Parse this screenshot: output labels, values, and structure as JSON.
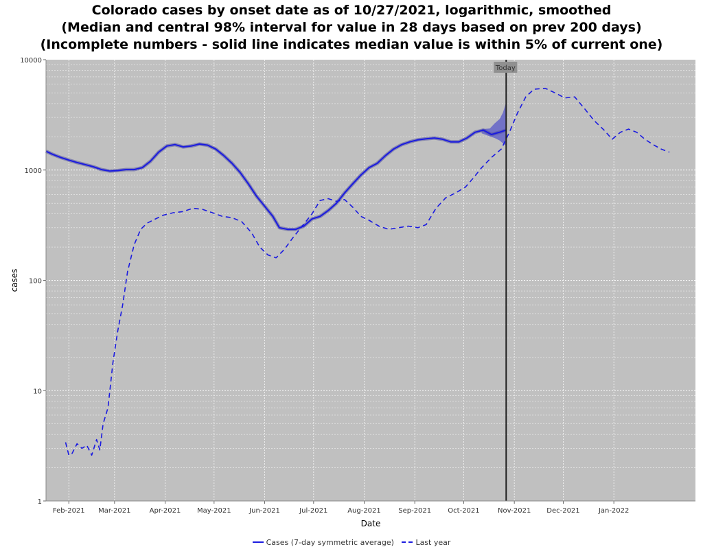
{
  "title_lines": [
    "Colorado cases by onset date as of 10/27/2021, logarithmic, smoothed",
    "(Median and central 98% interval for value in 28 days based on prev 200 days)",
    "(Incomplete numbers - solid line indicates median value is within 5% of current one)"
  ],
  "colors": {
    "plot_background": "#c0c0c0",
    "series": "#1a1ae0",
    "band": "#6464c8",
    "today_line": "#202020"
  },
  "chart_data": {
    "type": "line",
    "title": "Colorado cases by onset date as of 10/27/2021, logarithmic, smoothed",
    "xlabel": "Date",
    "ylabel": "cases",
    "y_scale": "log",
    "ylim": [
      1,
      10000
    ],
    "xlim": [
      "2021-01-18",
      "2022-02-20"
    ],
    "grid": true,
    "legend_position": "bottom",
    "y_ticks": [
      "1",
      "10",
      "100",
      "1000",
      "10000"
    ],
    "x_ticks": [
      {
        "date": "2021-02-01",
        "label": "Feb-2021"
      },
      {
        "date": "2021-03-01",
        "label": "Mar-2021"
      },
      {
        "date": "2021-04-01",
        "label": "Apr-2021"
      },
      {
        "date": "2021-05-01",
        "label": "May-2021"
      },
      {
        "date": "2021-06-01",
        "label": "Jun-2021"
      },
      {
        "date": "2021-07-01",
        "label": "Jul-2021"
      },
      {
        "date": "2021-08-01",
        "label": "Aug-2021"
      },
      {
        "date": "2021-09-01",
        "label": "Sep-2021"
      },
      {
        "date": "2021-10-01",
        "label": "Oct-2021"
      },
      {
        "date": "2021-11-01",
        "label": "Nov-2021"
      },
      {
        "date": "2021-12-01",
        "label": "Dec-2021"
      },
      {
        "date": "2022-01-01",
        "label": "Jan-2022"
      }
    ],
    "annotation": {
      "date": "2021-10-27",
      "label": "Today"
    },
    "series": [
      {
        "name": "Cases (7-day symmetric average)",
        "style": "solid",
        "points": [
          [
            "2021-01-18",
            1480
          ],
          [
            "2021-01-22",
            1390
          ],
          [
            "2021-01-27",
            1300
          ],
          [
            "2021-02-01",
            1230
          ],
          [
            "2021-02-06",
            1170
          ],
          [
            "2021-02-11",
            1120
          ],
          [
            "2021-02-16",
            1070
          ],
          [
            "2021-02-21",
            1010
          ],
          [
            "2021-02-26",
            980
          ],
          [
            "2021-03-03",
            990
          ],
          [
            "2021-03-08",
            1010
          ],
          [
            "2021-03-13",
            1010
          ],
          [
            "2021-03-18",
            1050
          ],
          [
            "2021-03-23",
            1200
          ],
          [
            "2021-03-28",
            1450
          ],
          [
            "2021-04-02",
            1650
          ],
          [
            "2021-04-07",
            1700
          ],
          [
            "2021-04-12",
            1620
          ],
          [
            "2021-04-17",
            1650
          ],
          [
            "2021-04-22",
            1720
          ],
          [
            "2021-04-27",
            1680
          ],
          [
            "2021-05-02",
            1550
          ],
          [
            "2021-05-07",
            1350
          ],
          [
            "2021-05-12",
            1150
          ],
          [
            "2021-05-17",
            950
          ],
          [
            "2021-05-22",
            750
          ],
          [
            "2021-05-27",
            580
          ],
          [
            "2021-06-01",
            470
          ],
          [
            "2021-06-06",
            380
          ],
          [
            "2021-06-10",
            300
          ],
          [
            "2021-06-15",
            290
          ],
          [
            "2021-06-20",
            290
          ],
          [
            "2021-06-25",
            310
          ],
          [
            "2021-06-30",
            360
          ],
          [
            "2021-07-05",
            380
          ],
          [
            "2021-07-10",
            430
          ],
          [
            "2021-07-15",
            500
          ],
          [
            "2021-07-20",
            620
          ],
          [
            "2021-07-25",
            750
          ],
          [
            "2021-07-30",
            900
          ],
          [
            "2021-08-04",
            1050
          ],
          [
            "2021-08-09",
            1150
          ],
          [
            "2021-08-14",
            1350
          ],
          [
            "2021-08-19",
            1550
          ],
          [
            "2021-08-24",
            1700
          ],
          [
            "2021-08-29",
            1800
          ],
          [
            "2021-09-03",
            1880
          ],
          [
            "2021-09-08",
            1920
          ],
          [
            "2021-09-13",
            1950
          ],
          [
            "2021-09-18",
            1900
          ],
          [
            "2021-09-23",
            1800
          ],
          [
            "2021-09-28",
            1800
          ],
          [
            "2021-10-03",
            1950
          ],
          [
            "2021-10-08",
            2200
          ],
          [
            "2021-10-13",
            2300
          ],
          [
            "2021-10-18",
            2100
          ],
          [
            "2021-10-23",
            2200
          ],
          [
            "2021-10-27",
            2300
          ]
        ],
        "band": [
          [
            "2021-10-12",
            2150,
            2350
          ],
          [
            "2021-10-17",
            2020,
            2380
          ],
          [
            "2021-10-20",
            1950,
            2650
          ],
          [
            "2021-10-23",
            1850,
            2900
          ],
          [
            "2021-10-25",
            1750,
            3300
          ],
          [
            "2021-10-27",
            1650,
            4100
          ]
        ]
      },
      {
        "name": "Last year",
        "style": "dashed",
        "points": [
          [
            "2021-01-30",
            3.4
          ],
          [
            "2021-02-01",
            2.6
          ],
          [
            "2021-02-03",
            2.7
          ],
          [
            "2021-02-06",
            3.3
          ],
          [
            "2021-02-09",
            3.0
          ],
          [
            "2021-02-12",
            3.2
          ],
          [
            "2021-02-15",
            2.6
          ],
          [
            "2021-02-18",
            3.6
          ],
          [
            "2021-02-20",
            2.9
          ],
          [
            "2021-02-22",
            5.0
          ],
          [
            "2021-02-25",
            7.0
          ],
          [
            "2021-02-28",
            18
          ],
          [
            "2021-03-03",
            35
          ],
          [
            "2021-03-06",
            60
          ],
          [
            "2021-03-09",
            120
          ],
          [
            "2021-03-13",
            210
          ],
          [
            "2021-03-17",
            290
          ],
          [
            "2021-03-21",
            330
          ],
          [
            "2021-03-26",
            360
          ],
          [
            "2021-03-31",
            390
          ],
          [
            "2021-04-06",
            410
          ],
          [
            "2021-04-12",
            420
          ],
          [
            "2021-04-18",
            450
          ],
          [
            "2021-04-24",
            440
          ],
          [
            "2021-04-30",
            410
          ],
          [
            "2021-05-06",
            380
          ],
          [
            "2021-05-12",
            370
          ],
          [
            "2021-05-18",
            340
          ],
          [
            "2021-05-24",
            270
          ],
          [
            "2021-05-29",
            200
          ],
          [
            "2021-06-03",
            170
          ],
          [
            "2021-06-08",
            160
          ],
          [
            "2021-06-13",
            190
          ],
          [
            "2021-06-18",
            240
          ],
          [
            "2021-06-24",
            310
          ],
          [
            "2021-06-30",
            400
          ],
          [
            "2021-07-05",
            530
          ],
          [
            "2021-07-10",
            550
          ],
          [
            "2021-07-15",
            520
          ],
          [
            "2021-07-20",
            540
          ],
          [
            "2021-07-25",
            460
          ],
          [
            "2021-07-30",
            380
          ],
          [
            "2021-08-04",
            350
          ],
          [
            "2021-08-10",
            310
          ],
          [
            "2021-08-16",
            290
          ],
          [
            "2021-08-22",
            300
          ],
          [
            "2021-08-28",
            310
          ],
          [
            "2021-09-03",
            300
          ],
          [
            "2021-09-08",
            320
          ],
          [
            "2021-09-14",
            450
          ],
          [
            "2021-09-20",
            560
          ],
          [
            "2021-09-26",
            620
          ],
          [
            "2021-10-02",
            700
          ],
          [
            "2021-10-07",
            850
          ],
          [
            "2021-10-12",
            1050
          ],
          [
            "2021-10-18",
            1300
          ],
          [
            "2021-10-24",
            1550
          ],
          [
            "2021-10-29",
            2200
          ],
          [
            "2021-11-03",
            3300
          ],
          [
            "2021-11-08",
            4600
          ],
          [
            "2021-11-13",
            5400
          ],
          [
            "2021-11-20",
            5500
          ],
          [
            "2021-11-26",
            5000
          ],
          [
            "2021-12-02",
            4500
          ],
          [
            "2021-12-08",
            4600
          ],
          [
            "2021-12-14",
            3600
          ],
          [
            "2021-12-20",
            2800
          ],
          [
            "2021-12-26",
            2300
          ],
          [
            "2021-12-31",
            1900
          ],
          [
            "2022-01-05",
            2200
          ],
          [
            "2022-01-10",
            2350
          ],
          [
            "2022-01-15",
            2200
          ],
          [
            "2022-01-20",
            1900
          ],
          [
            "2022-01-25",
            1700
          ],
          [
            "2022-01-30",
            1550
          ],
          [
            "2022-02-04",
            1450
          ]
        ]
      }
    ]
  }
}
